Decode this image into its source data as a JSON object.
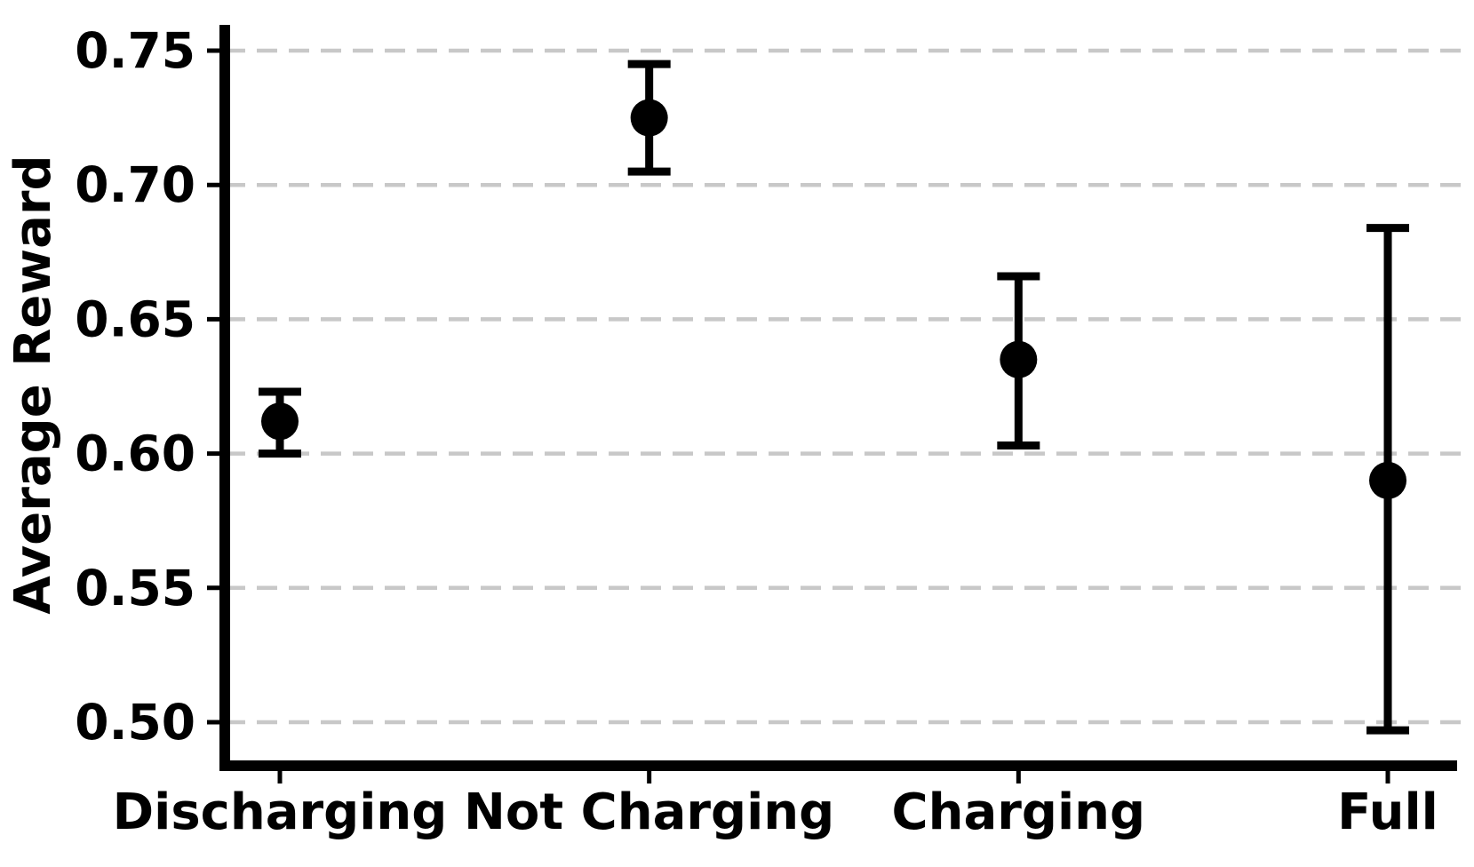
{
  "chart_data": {
    "type": "scatter",
    "subtype": "point-estimates-with-error-bars",
    "title": "",
    "xlabel": "",
    "ylabel": "Average Reward",
    "categories": [
      "Discharging",
      "Not Charging",
      "Charging",
      "Full"
    ],
    "values": [
      0.612,
      0.725,
      0.635,
      0.59
    ],
    "error_low": [
      0.6,
      0.705,
      0.603,
      0.497
    ],
    "error_high": [
      0.623,
      0.745,
      0.666,
      0.684
    ],
    "yticks": [
      0.5,
      0.55,
      0.6,
      0.65,
      0.7,
      0.75
    ],
    "ytick_labels": [
      "0.50",
      "0.55",
      "0.60",
      "0.65",
      "0.70",
      "0.75"
    ],
    "ylim": [
      0.485,
      0.76
    ],
    "grid": "horizontal-dashed",
    "legend": "none",
    "colors": {
      "marker": "#000000",
      "error_bar": "#000000",
      "spine": "#000000",
      "tick_text": "#000000",
      "grid": "#c8c8c8",
      "background": "#ffffff"
    }
  }
}
